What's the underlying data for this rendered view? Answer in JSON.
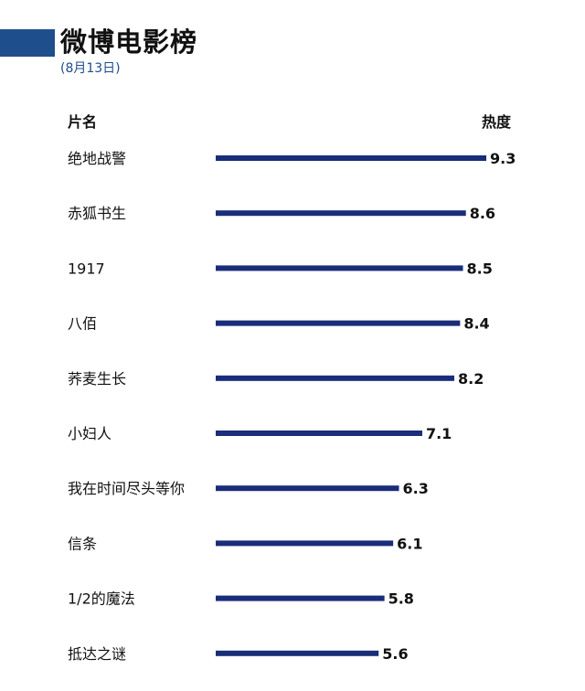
{
  "header": {
    "title": "微博电影榜",
    "subtitle": "(8月13日)",
    "accent_color": "#1f4e8c"
  },
  "chart_data": {
    "type": "bar",
    "orientation": "horizontal",
    "column_headers": {
      "name": "片名",
      "value": "热度"
    },
    "categories": [
      "绝地战警",
      "赤狐书生",
      "1917",
      "八佰",
      "荞麦生长",
      "小妇人",
      "我在时间尽头等你",
      "信条",
      "1/2的魔法",
      "抵达之谜"
    ],
    "values": [
      9.3,
      8.6,
      8.5,
      8.4,
      8.2,
      7.1,
      6.3,
      6.1,
      5.8,
      5.6
    ],
    "value_labels": [
      "9.3",
      "8.6",
      "8.5",
      "8.4",
      "8.2",
      "7.1",
      "6.3",
      "6.1",
      "5.8",
      "5.6"
    ],
    "xlim": [
      0,
      9.3
    ],
    "bar_color": "#1a2d7a",
    "grid": false,
    "legend": false
  }
}
